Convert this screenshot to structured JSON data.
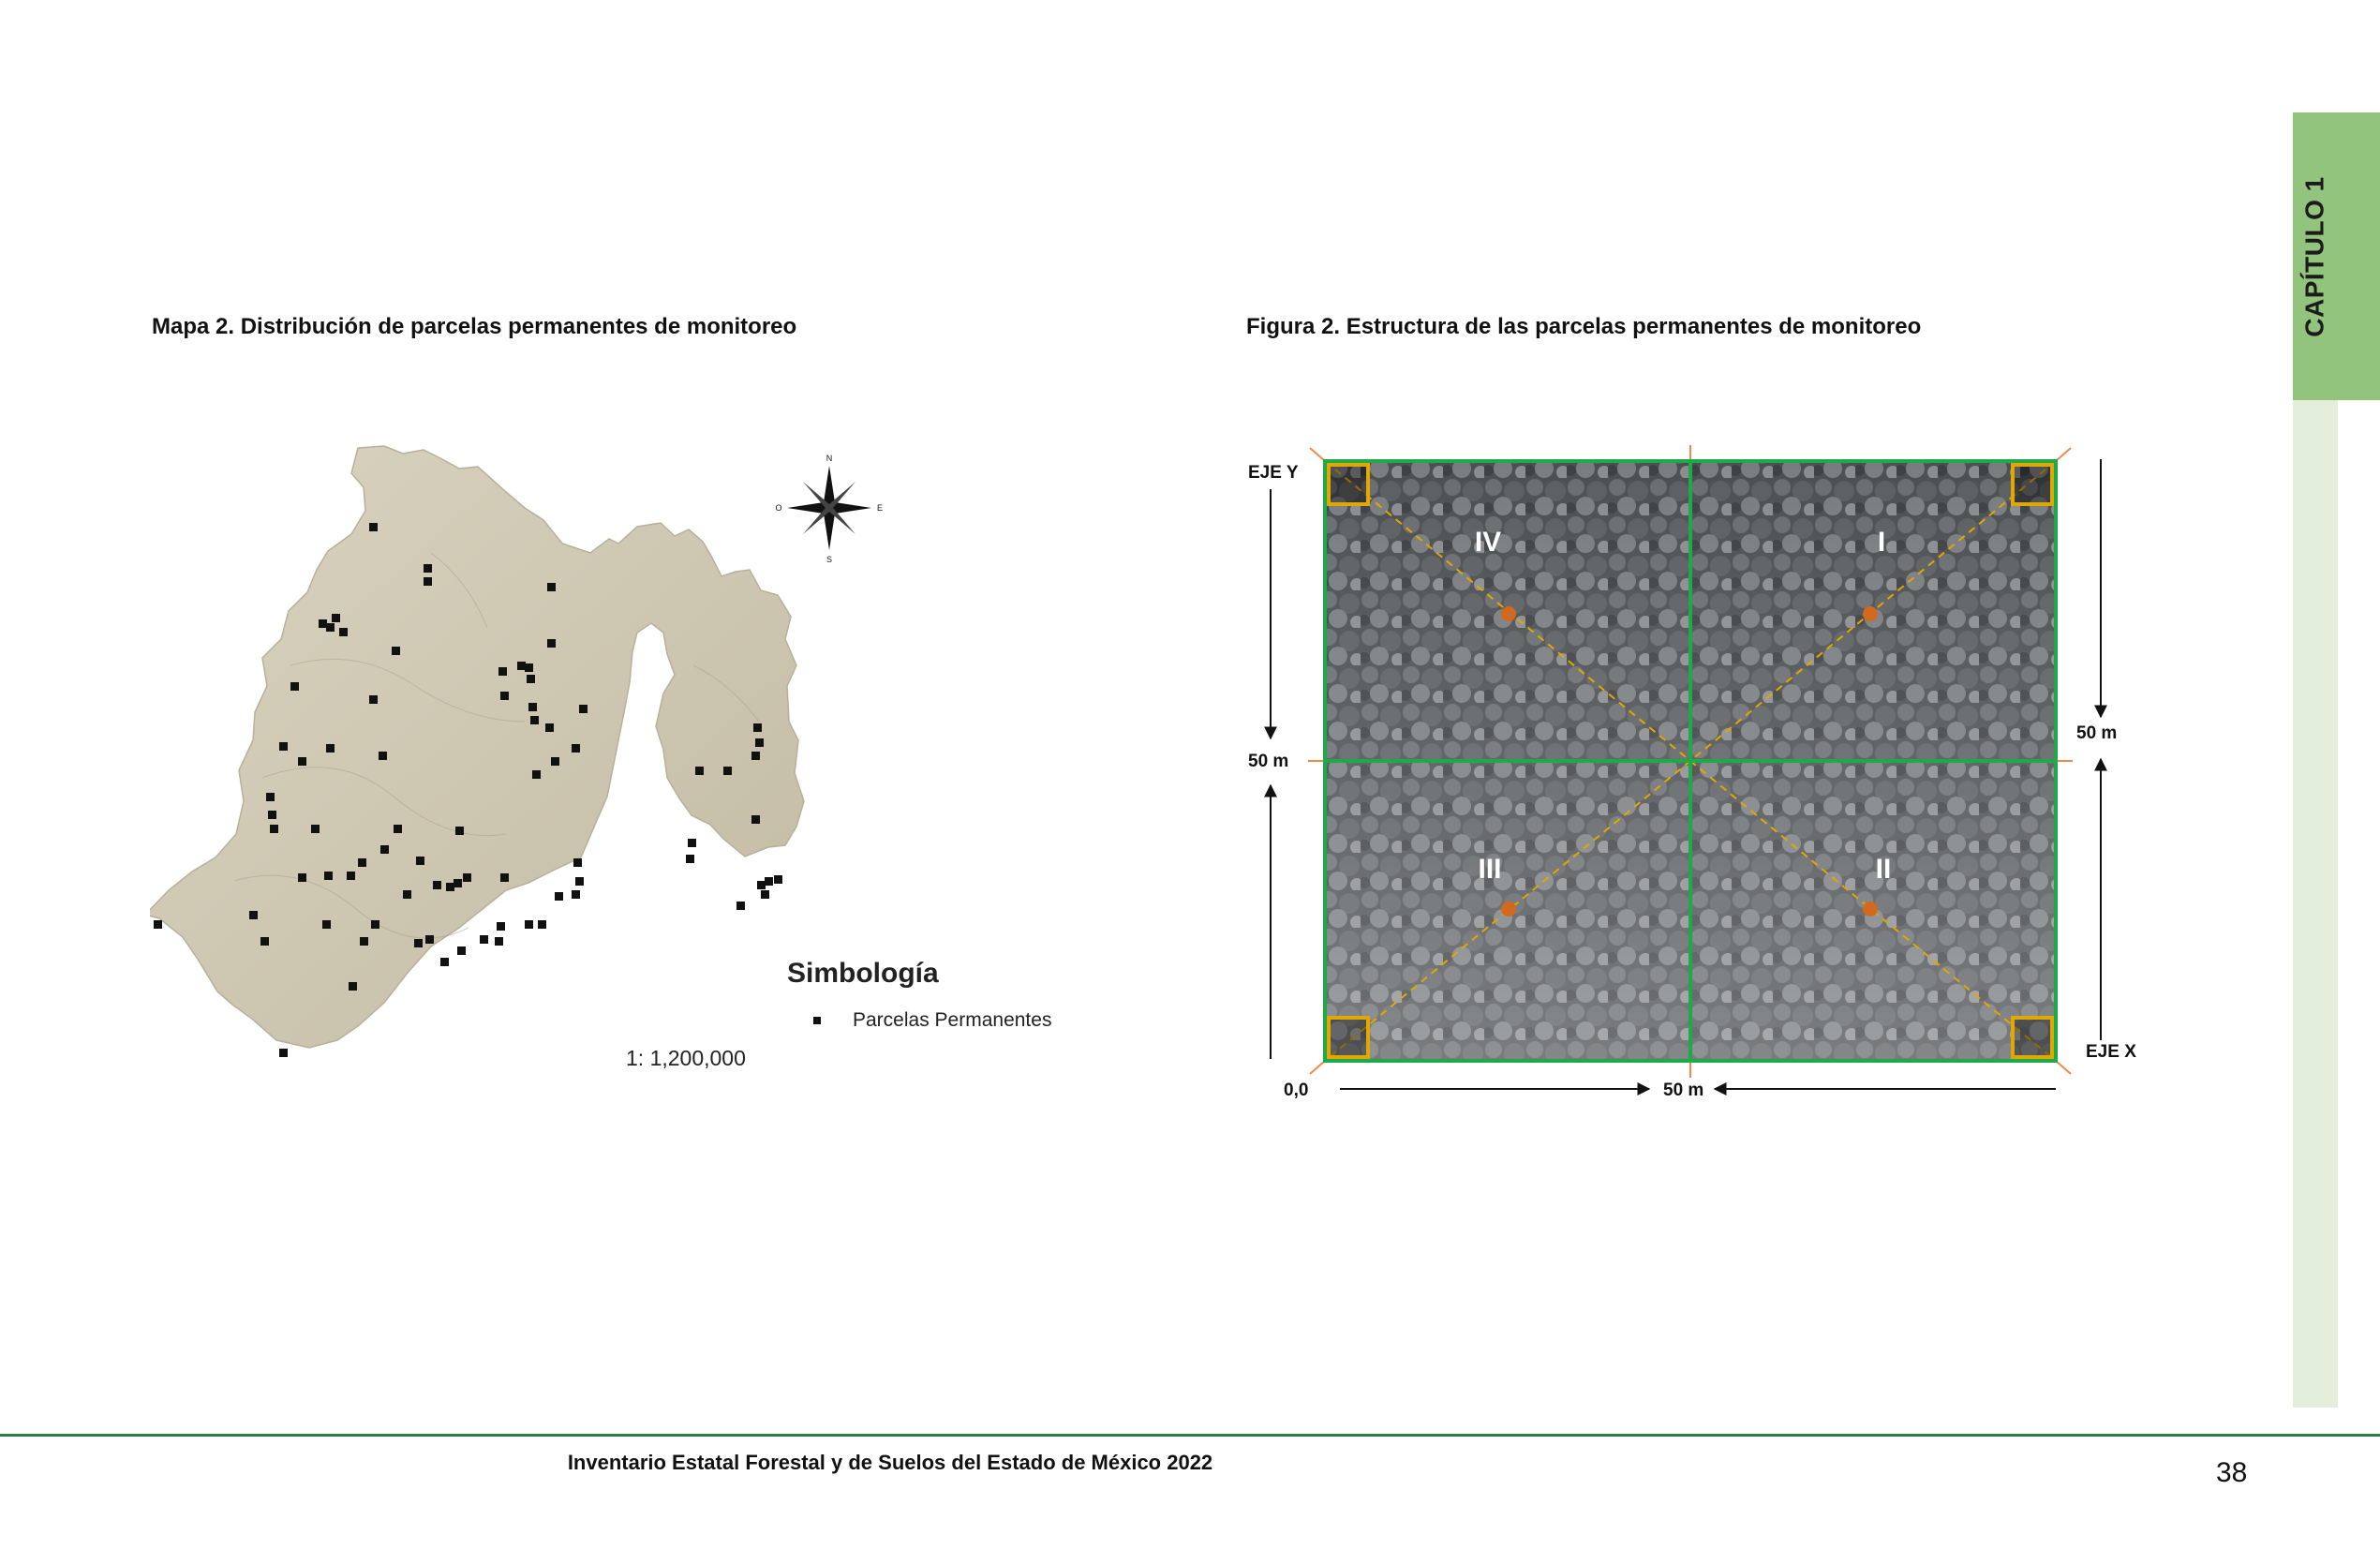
{
  "side_tab": {
    "label": "CAPÍTULO 1",
    "color_dark": "#93c47d",
    "color_light": "#e3eedb"
  },
  "map": {
    "caption": "Mapa 2. Distribución de parcelas permanentes de monitoreo",
    "legend_title": "Simbología",
    "legend_item": "Parcelas Permanentes",
    "scale": "1: 1,200,000",
    "compass": {
      "n": "N",
      "s": "S",
      "e": "E",
      "o": "O"
    },
    "marker_color": "#111111",
    "terrain_color": "#cfc8b3"
  },
  "figure": {
    "caption": "Figura 2. Estructura de las parcelas permanentes de monitoreo",
    "label_eje_y": "EJE Y",
    "label_eje_x": "EJE X",
    "label_50m_left": "50 m",
    "label_50m_right": "50 m",
    "label_50m_bottom": "50 m",
    "label_origin": "0,0",
    "quadrants": {
      "q1": "I",
      "q2": "II",
      "q3": "III",
      "q4": "IV"
    },
    "frame_color": "#1faa4a",
    "corner_color": "#e0a800",
    "center_dot_color": "#d2691e",
    "axis_color": "#f08a4b"
  },
  "footer": {
    "title": "Inventario Estatal Forestal y de Suelos del Estado de México 2022",
    "page_number": "38",
    "rule_color": "#2e7d4b"
  }
}
